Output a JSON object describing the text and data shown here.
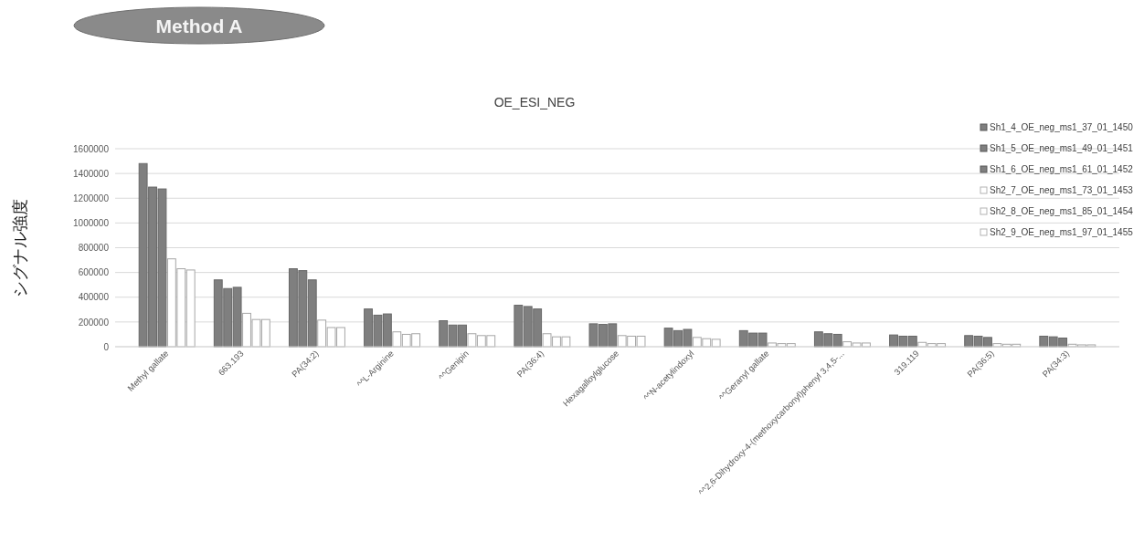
{
  "chart_data": {
    "type": "bar",
    "title": "OE_ESI_NEG",
    "ylabel": "シグナル強度",
    "annotations": [
      "Method A"
    ],
    "categories": [
      "Methyl gallate",
      "663.193",
      "PA(34:2)",
      "^^L-Arginine",
      "^^Genipin",
      "PA(36:4)",
      "Hexagalloylglucose",
      "^^N-acetylindoxyl",
      "^^Geranyl gallate",
      "^^2,6-Dihydroxy-4-(methoxycarbonyl)phenyl 3,4,5-...",
      "319.119",
      "PA(36:5)",
      "PA(34:3)"
    ],
    "series": [
      {
        "name": "Sh1_4_OE_neg_ms1_37_01_1450",
        "color": "#7f7f7f",
        "values": [
          1480000,
          540000,
          630000,
          305000,
          210000,
          335000,
          185000,
          150000,
          130000,
          120000,
          95000,
          90000,
          85000
        ]
      },
      {
        "name": "Sh1_5_OE_neg_ms1_49_01_1451",
        "color": "#7f7f7f",
        "values": [
          1290000,
          470000,
          615000,
          255000,
          175000,
          325000,
          180000,
          130000,
          110000,
          105000,
          85000,
          85000,
          80000
        ]
      },
      {
        "name": "Sh1_6_OE_neg_ms1_61_01_1452",
        "color": "#7f7f7f",
        "values": [
          1275000,
          480000,
          540000,
          265000,
          175000,
          305000,
          185000,
          140000,
          110000,
          100000,
          85000,
          75000,
          70000
        ]
      },
      {
        "name": "Sh2_7_OE_neg_ms1_73_01_1453",
        "color": "#ffffff",
        "values": [
          710000,
          270000,
          215000,
          120000,
          105000,
          105000,
          90000,
          75000,
          30000,
          40000,
          35000,
          25000,
          20000
        ]
      },
      {
        "name": "Sh2_8_OE_neg_ms1_85_01_1454",
        "color": "#ffffff",
        "values": [
          630000,
          220000,
          155000,
          100000,
          90000,
          80000,
          85000,
          65000,
          25000,
          30000,
          25000,
          20000,
          15000
        ]
      },
      {
        "name": "Sh2_9_OE_neg_ms1_97_01_1455",
        "color": "#ffffff",
        "values": [
          620000,
          220000,
          155000,
          105000,
          90000,
          80000,
          85000,
          60000,
          25000,
          30000,
          25000,
          20000,
          15000
        ]
      }
    ],
    "ylim": [
      0,
      1600000
    ],
    "yticks": [
      0,
      200000,
      400000,
      600000,
      800000,
      1000000,
      1200000,
      1400000,
      1600000
    ],
    "grid": "y",
    "legend": "top right"
  }
}
